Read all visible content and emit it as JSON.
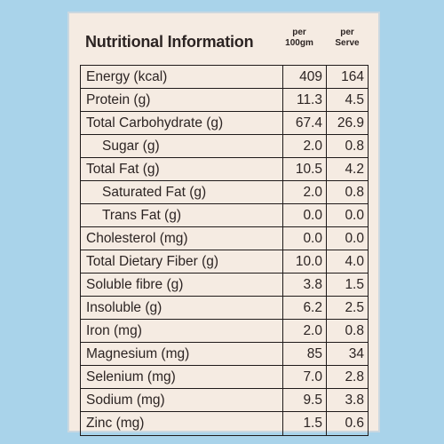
{
  "header": {
    "title": "Nutritional Information",
    "col1": [
      "per",
      "100gm"
    ],
    "col2": [
      "per",
      "Serve"
    ]
  },
  "rows": [
    {
      "name": "Energy (kcal)",
      "per100": "409",
      "perServe": "164",
      "indent": false
    },
    {
      "name": "Protein (g)",
      "per100": "11.3",
      "perServe": "4.5",
      "indent": false
    },
    {
      "name": "Total Carbohydrate (g)",
      "per100": "67.4",
      "perServe": "26.9",
      "indent": false
    },
    {
      "name": "Sugar (g)",
      "per100": "2.0",
      "perServe": "0.8",
      "indent": true
    },
    {
      "name": "Total Fat (g)",
      "per100": "10.5",
      "perServe": "4.2",
      "indent": false
    },
    {
      "name": "Saturated Fat (g)",
      "per100": "2.0",
      "perServe": "0.8",
      "indent": true
    },
    {
      "name": "Trans Fat (g)",
      "per100": "0.0",
      "perServe": "0.0",
      "indent": true
    },
    {
      "name": "Cholesterol (mg)",
      "per100": "0.0",
      "perServe": "0.0",
      "indent": false
    },
    {
      "name": "Total Dietary Fiber (g)",
      "per100": "10.0",
      "perServe": "4.0",
      "indent": false
    },
    {
      "name": "Soluble fibre (g)",
      "per100": "3.8",
      "perServe": "1.5",
      "indent": false
    },
    {
      "name": "Insoluble (g)",
      "per100": "6.2",
      "perServe": "2.5",
      "indent": false
    },
    {
      "name": "Iron (mg)",
      "per100": "2.0",
      "perServe": "0.8",
      "indent": false
    },
    {
      "name": "Magnesium (mg)",
      "per100": "85",
      "perServe": "34",
      "indent": false
    },
    {
      "name": "Selenium (mg)",
      "per100": "7.0",
      "perServe": "2.8",
      "indent": false
    },
    {
      "name": "Sodium (mg)",
      "per100": "9.5",
      "perServe": "3.8",
      "indent": false
    },
    {
      "name": "Zinc (mg)",
      "per100": "1.5",
      "perServe": "0.6",
      "indent": false
    }
  ]
}
